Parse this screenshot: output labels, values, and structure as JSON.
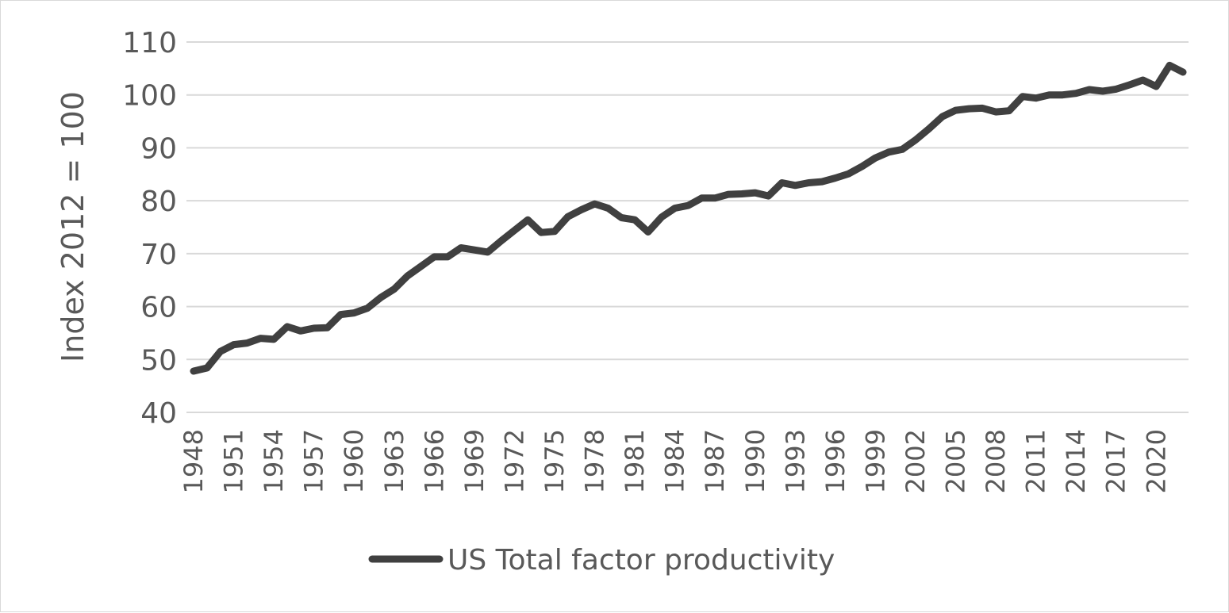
{
  "chart_data": {
    "type": "line",
    "title": "",
    "xlabel": "",
    "ylabel": "Index 2012 = 100",
    "ylim": [
      40,
      110
    ],
    "yticks": [
      40,
      50,
      60,
      70,
      80,
      90,
      100,
      110
    ],
    "xtick_labels": [
      "1948",
      "1951",
      "1954",
      "1957",
      "1960",
      "1963",
      "1966",
      "1969",
      "1972",
      "1975",
      "1978",
      "1981",
      "1984",
      "1987",
      "1990",
      "1993",
      "1996",
      "1999",
      "2002",
      "2005",
      "2008",
      "2011",
      "2014",
      "2017",
      "2020"
    ],
    "grid": true,
    "legend_position": "bottom",
    "series": [
      {
        "name": "US Total factor productivity",
        "color": "#404040",
        "x": [
          1948,
          1949,
          1950,
          1951,
          1952,
          1953,
          1954,
          1955,
          1956,
          1957,
          1958,
          1959,
          1960,
          1961,
          1962,
          1963,
          1964,
          1965,
          1966,
          1967,
          1968,
          1969,
          1970,
          1971,
          1972,
          1973,
          1974,
          1975,
          1976,
          1977,
          1978,
          1979,
          1980,
          1981,
          1982,
          1983,
          1984,
          1985,
          1986,
          1987,
          1988,
          1989,
          1990,
          1991,
          1992,
          1993,
          1994,
          1995,
          1996,
          1997,
          1998,
          1999,
          2000,
          2001,
          2002,
          2003,
          2004,
          2005,
          2006,
          2007,
          2008,
          2009,
          2010,
          2011,
          2012,
          2013,
          2014,
          2015,
          2016,
          2017,
          2018,
          2019,
          2020,
          2021,
          2022
        ],
        "values": [
          47.8,
          48.4,
          51.5,
          52.8,
          53.1,
          54.0,
          53.8,
          56.2,
          55.4,
          55.9,
          56.0,
          58.5,
          58.8,
          59.7,
          61.7,
          63.3,
          65.8,
          67.6,
          69.4,
          69.4,
          71.1,
          70.7,
          70.3,
          72.4,
          74.4,
          76.4,
          74.0,
          74.2,
          77.0,
          78.3,
          79.4,
          78.6,
          76.8,
          76.4,
          74.1,
          76.9,
          78.6,
          79.1,
          80.5,
          80.5,
          81.2,
          81.3,
          81.5,
          80.9,
          83.4,
          82.9,
          83.4,
          83.6,
          84.3,
          85.1,
          86.5,
          88.1,
          89.2,
          89.7,
          91.5,
          93.6,
          95.9,
          97.1,
          97.4,
          97.5,
          96.8,
          97.0,
          99.7,
          99.4,
          100.0,
          100.0,
          100.3,
          101.0,
          100.7,
          101.1,
          101.9,
          102.8,
          101.6,
          105.6,
          104.3
        ]
      }
    ]
  }
}
